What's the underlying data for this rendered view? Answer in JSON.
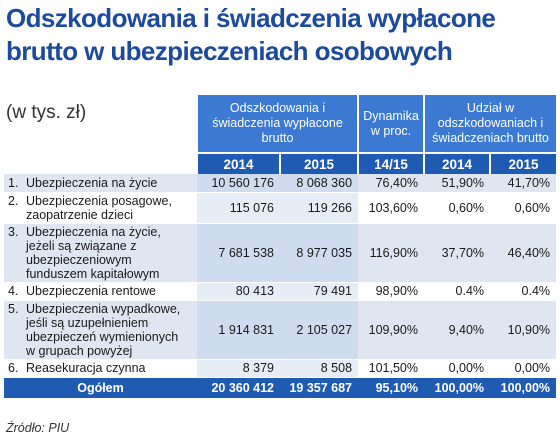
{
  "header": {
    "title": "Odszkodowania i świadczenia wypłacone brutto w ubezpieczeniach osobowych",
    "unit": "(w tys. zł)"
  },
  "columns": {
    "group1": "Odszkodowania i świadczenia wypłacone brutto",
    "group2": "Dynamika w proc.",
    "group3": "Udział w odszkodowaniach i świadczeniach brutto",
    "y2014": "2014",
    "y2015": "2015",
    "dyn": "14/15",
    "u2014": "2014",
    "u2015": "2015"
  },
  "chart_data": {
    "type": "table",
    "columns": [
      "2014",
      "2015",
      "14/15",
      "2014",
      "2015"
    ],
    "rows": [
      {
        "idx": "1.",
        "name": "Ubezpieczenia na życie",
        "v2014": "10 560 176",
        "v2015": "8 068 360",
        "dyn": "76,40%",
        "u2014": "51,90%",
        "u2015": "41,70%"
      },
      {
        "idx": "2.",
        "name": "Ubezpieczenia posagowe, zaopatrzenie dzieci",
        "v2014": "115 076",
        "v2015": "119 266",
        "dyn": "103,60%",
        "u2014": "0,60%",
        "u2015": "0,60%"
      },
      {
        "idx": "3.",
        "name": "Ubezpieczenia na życie, jeżeli są związane z ubezpieczeniowym funduszem kapitałowym",
        "v2014": "7 681 538",
        "v2015": "8 977 035",
        "dyn": "116,90%",
        "u2014": "37,70%",
        "u2015": "46,40%"
      },
      {
        "idx": "4.",
        "name": "Ubezpieczenia rentowe",
        "v2014": "80 413",
        "v2015": "79 491",
        "dyn": "98,90%",
        "u2014": "0.4%",
        "u2015": "0.4%"
      },
      {
        "idx": "5.",
        "name": "Ubezpieczenia wypadkowe, jeśli są uzupełnieniem ubezpieczeń wymienionych w grupach powyżej",
        "v2014": "1 914 831",
        "v2015": "2 105 027",
        "dyn": "109,90%",
        "u2014": "9,40%",
        "u2015": "10,90%"
      },
      {
        "idx": "6.",
        "name": "Reasekuracja czynna",
        "v2014": "8 379",
        "v2015": "8 508",
        "dyn": "101,50%",
        "u2014": "0,00%",
        "u2015": "0,00%"
      }
    ],
    "total": {
      "name": "Ogółem",
      "v2014": "20 360 412",
      "v2015": "19 357 687",
      "dyn": "95,10%",
      "u2014": "100,00%",
      "u2015": "100,00%"
    }
  },
  "footer": {
    "source": "Źródło: PIU"
  },
  "colors": {
    "title": "#1b4a9e",
    "header_light": "#3b79d2",
    "header_dark": "#1f5bb3",
    "row_shade": "#dfe6f1"
  }
}
